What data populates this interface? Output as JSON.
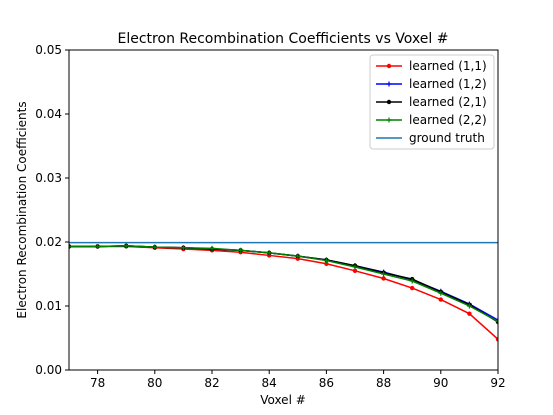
{
  "chart_data": {
    "type": "line",
    "title": "Electron Recombination Coefficients vs Voxel #",
    "xlabel": "Voxel #",
    "ylabel": "Electron Recombination Coefficients",
    "xlim": [
      77,
      92
    ],
    "ylim": [
      0,
      0.05
    ],
    "xticks": [
      78,
      80,
      82,
      84,
      86,
      88,
      90,
      92
    ],
    "yticks": [
      0.0,
      0.01,
      0.02,
      0.03,
      0.04,
      0.05
    ],
    "xtick_labels": [
      "78",
      "80",
      "82",
      "84",
      "86",
      "88",
      "90",
      "92"
    ],
    "ytick_labels": [
      "0.00",
      "0.01",
      "0.02",
      "0.03",
      "0.04",
      "0.05"
    ],
    "grid": false,
    "legend_position": "top-right",
    "x": [
      77,
      78,
      79,
      80,
      81,
      82,
      83,
      84,
      85,
      86,
      87,
      88,
      89,
      90,
      91,
      92
    ],
    "series": [
      {
        "name": "learned (1,1)",
        "color": "#ff0000",
        "marker": "circle",
        "values": [
          0.0193,
          0.0193,
          0.0193,
          0.0191,
          0.0189,
          0.0187,
          0.0184,
          0.0179,
          0.0174,
          0.0166,
          0.0155,
          0.0143,
          0.0128,
          0.011,
          0.0088,
          0.0048
        ]
      },
      {
        "name": "learned (1,2)",
        "color": "#0000ff",
        "marker": "plus",
        "values": [
          0.0193,
          0.0193,
          0.0194,
          0.0192,
          0.0191,
          0.0189,
          0.0187,
          0.0183,
          0.0178,
          0.0172,
          0.0163,
          0.0153,
          0.0141,
          0.0123,
          0.0103,
          0.0078
        ]
      },
      {
        "name": "learned (2,1)",
        "color": "#000000",
        "marker": "circle",
        "values": [
          0.0193,
          0.0193,
          0.0194,
          0.0192,
          0.0191,
          0.0189,
          0.0187,
          0.0183,
          0.0178,
          0.0172,
          0.0163,
          0.0152,
          0.0142,
          0.0122,
          0.0102,
          0.0075
        ]
      },
      {
        "name": "learned (2,2)",
        "color": "#008000",
        "marker": "plus",
        "values": [
          0.0193,
          0.0193,
          0.0194,
          0.0192,
          0.0191,
          0.019,
          0.0187,
          0.0183,
          0.0178,
          0.0171,
          0.0161,
          0.015,
          0.0139,
          0.012,
          0.01,
          0.0076
        ]
      },
      {
        "name": "ground truth",
        "color": "#1f77b4",
        "marker": "none",
        "values": [
          0.0199,
          0.0199,
          0.0199,
          0.0199,
          0.0199,
          0.0199,
          0.0199,
          0.0199,
          0.0199,
          0.0199,
          0.0199,
          0.0199,
          0.0199,
          0.0199,
          0.0199,
          0.0199
        ]
      }
    ]
  }
}
